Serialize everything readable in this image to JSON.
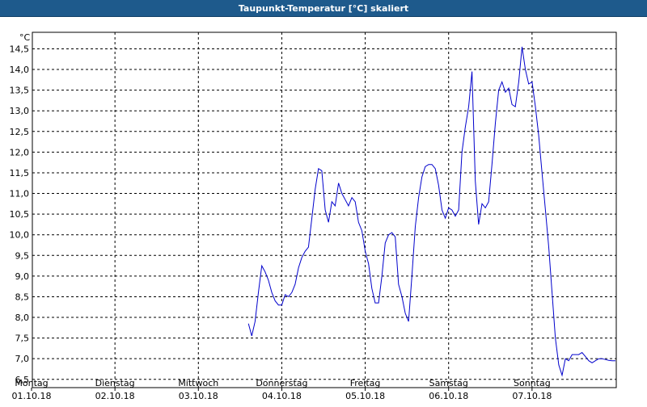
{
  "window": {
    "title": "Taupunkt-Temperatur [°C] skaliert",
    "title_bg": "#1e5a8c"
  },
  "chart_data": {
    "type": "line",
    "title": "Taupunkt-Temperatur [°C] skaliert",
    "unit_label": "°C",
    "ylim": [
      6.3,
      14.9
    ],
    "xlim": [
      0,
      7.0
    ],
    "grid": true,
    "y_ticks": [
      "14,5",
      "14,0",
      "13,5",
      "13,0",
      "12,5",
      "12,0",
      "11,5",
      "11,0",
      "10,5",
      "10,0",
      "9,5",
      "9,0",
      "8,5",
      "8,0",
      "7,5",
      "7,0",
      "6,5"
    ],
    "x_ticks": [
      {
        "day": "Montag",
        "date": "01.10.18"
      },
      {
        "day": "Dienstag",
        "date": "02.10.18"
      },
      {
        "day": "Mittwoch",
        "date": "03.10.18"
      },
      {
        "day": "Donnerstag",
        "date": "04.10.18"
      },
      {
        "day": "Freitag",
        "date": "05.10.18"
      },
      {
        "day": "Samstag",
        "date": "06.10.18"
      },
      {
        "day": "Sonntag",
        "date": "07.10.18"
      }
    ],
    "series": [
      {
        "color": "#0000cc",
        "x": [
          2.6,
          2.64,
          2.68,
          2.72,
          2.76,
          2.8,
          2.84,
          2.88,
          2.92,
          2.96,
          3.0,
          3.04,
          3.08,
          3.12,
          3.16,
          3.2,
          3.24,
          3.28,
          3.32,
          3.36,
          3.4,
          3.44,
          3.48,
          3.52,
          3.56,
          3.6,
          3.64,
          3.68,
          3.72,
          3.76,
          3.8,
          3.84,
          3.88,
          3.92,
          3.96,
          4.0,
          4.04,
          4.08,
          4.12,
          4.16,
          4.2,
          4.24,
          4.28,
          4.32,
          4.36,
          4.4,
          4.44,
          4.48,
          4.52,
          4.56,
          4.6,
          4.64,
          4.68,
          4.72,
          4.76,
          4.8,
          4.84,
          4.88,
          4.92,
          4.96,
          5.0,
          5.04,
          5.08,
          5.12,
          5.16,
          5.2,
          5.24,
          5.28,
          5.32,
          5.36,
          5.4,
          5.44,
          5.48,
          5.52,
          5.56,
          5.6,
          5.64,
          5.68,
          5.72,
          5.76,
          5.8,
          5.84,
          5.88,
          5.92,
          5.96,
          6.0,
          6.04,
          6.08,
          6.12,
          6.16,
          6.2,
          6.24,
          6.28,
          6.32,
          6.36,
          6.4,
          6.44,
          6.48,
          6.52,
          6.56,
          6.6,
          6.64,
          6.68,
          6.72,
          6.76,
          6.8,
          6.84,
          6.88,
          6.92,
          6.96,
          7.0
        ],
        "y": [
          7.85,
          7.55,
          7.9,
          8.6,
          9.25,
          9.1,
          8.9,
          8.6,
          8.4,
          8.3,
          8.3,
          8.55,
          8.5,
          8.6,
          8.8,
          9.2,
          9.45,
          9.6,
          9.7,
          10.4,
          11.1,
          11.6,
          11.55,
          10.6,
          10.3,
          10.8,
          10.7,
          11.25,
          11.0,
          10.85,
          10.7,
          10.9,
          10.8,
          10.3,
          10.1,
          9.6,
          9.3,
          8.7,
          8.35,
          8.35,
          9.0,
          9.8,
          10.0,
          10.05,
          9.95,
          8.8,
          8.5,
          8.1,
          7.9,
          9.0,
          10.2,
          10.9,
          11.4,
          11.65,
          11.7,
          11.7,
          11.6,
          11.2,
          10.6,
          10.4,
          10.65,
          10.6,
          10.45,
          10.6,
          12.0,
          12.6,
          13.1,
          13.95,
          11.3,
          10.25,
          10.75,
          10.65,
          10.8,
          11.7,
          12.7,
          13.5,
          13.7,
          13.45,
          13.55,
          13.15,
          13.1,
          13.7,
          14.55,
          14.0,
          13.65,
          13.7,
          13.1,
          12.4,
          11.5,
          10.6,
          9.7,
          8.6,
          7.5,
          6.85,
          6.6,
          7.0,
          6.95,
          7.1,
          7.1,
          7.1,
          7.15,
          7.05,
          6.95,
          6.9,
          6.95,
          7.0,
          7.0,
          6.98,
          6.96,
          6.95,
          6.95
        ]
      }
    ]
  }
}
